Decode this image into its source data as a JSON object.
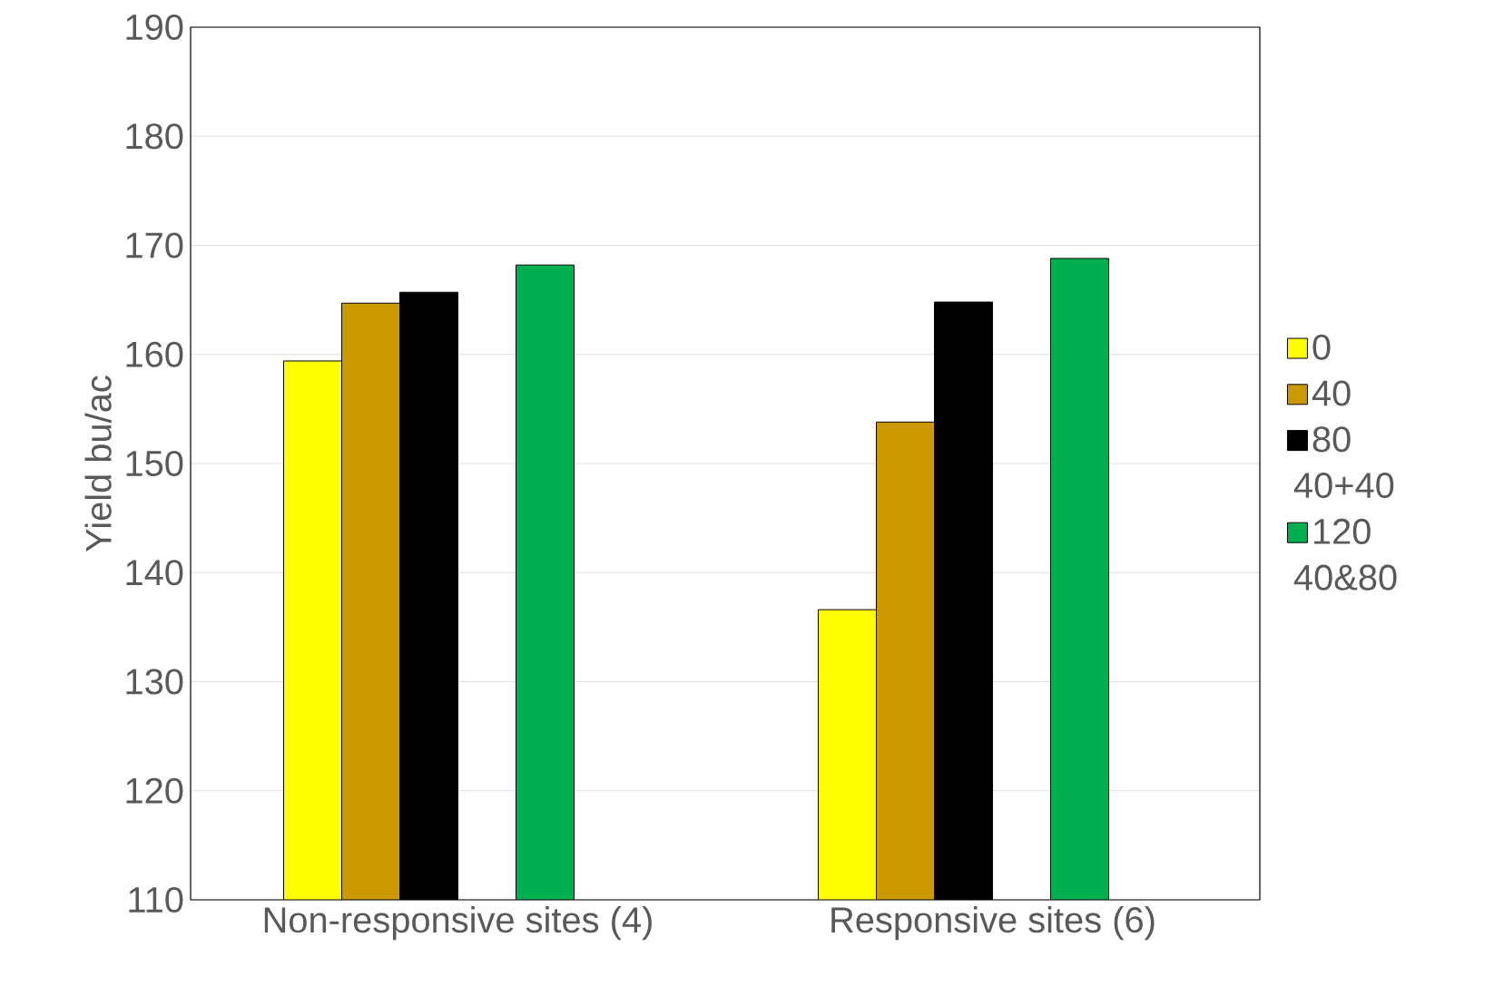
{
  "chart_data": {
    "type": "bar",
    "ylabel": "Yield bu/ac",
    "categories": [
      "Non-responsive sites (4)",
      "Responsive sites (6)"
    ],
    "series": [
      {
        "name": "0",
        "color": "#ffff00",
        "values": [
          159.4,
          136.6
        ]
      },
      {
        "name": "40",
        "color": "#cc9900",
        "values": [
          164.7,
          153.8
        ]
      },
      {
        "name": "80",
        "color": "#000000",
        "values": [
          165.7,
          164.8
        ]
      },
      {
        "name": "40+40",
        "values": [
          null,
          null
        ]
      },
      {
        "name": "120",
        "color": "#00b050",
        "values": [
          168.2,
          168.8
        ]
      },
      {
        "name": "40&80",
        "values": [
          null,
          null
        ]
      }
    ],
    "ylim": [
      110,
      190
    ],
    "yticks": [
      110,
      120,
      130,
      140,
      150,
      160,
      170,
      180,
      190
    ],
    "grid": "y",
    "legend": "right"
  }
}
